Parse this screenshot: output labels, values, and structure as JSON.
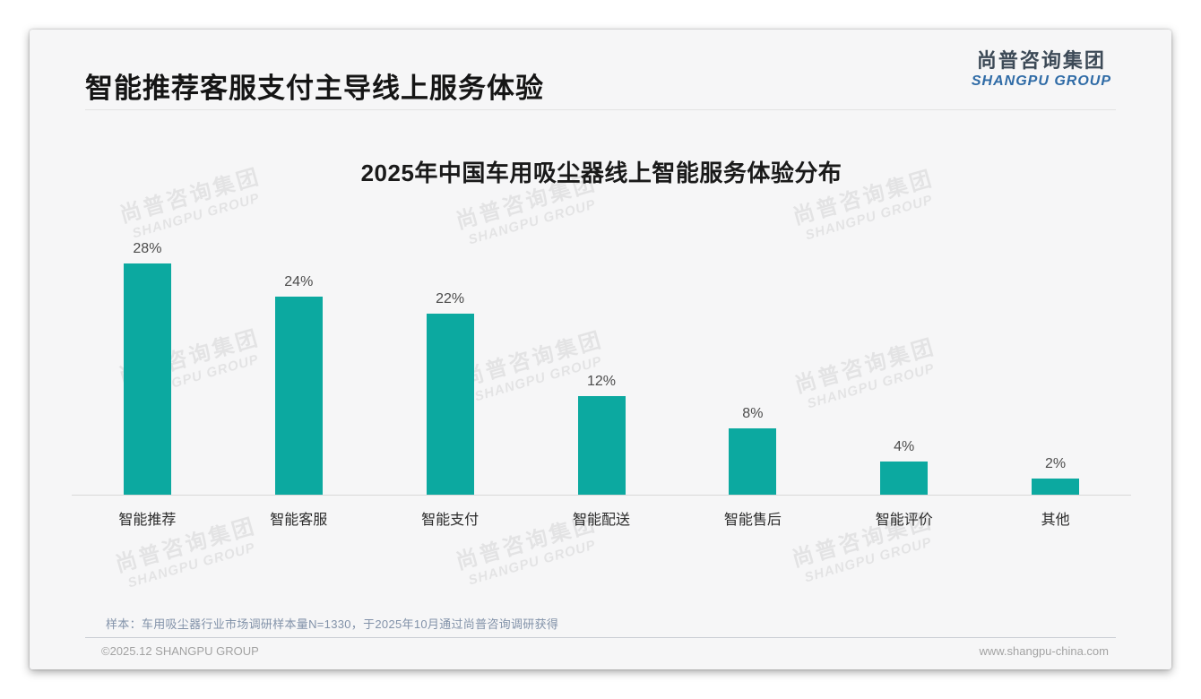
{
  "header": {
    "title": "智能推荐客服支付主导线上服务体验",
    "logo_cn": "尚普咨询集团",
    "logo_en": "SHANGPU GROUP"
  },
  "watermark": {
    "line1": "尚普咨询集团",
    "line2": "SHANGPU GROUP"
  },
  "chart_data": {
    "type": "bar",
    "title": "2025年中国车用吸尘器线上智能服务体验分布",
    "categories": [
      "智能推荐",
      "智能客服",
      "智能支付",
      "智能配送",
      "智能售后",
      "智能评价",
      "其他"
    ],
    "values": [
      28,
      24,
      22,
      12,
      8,
      4,
      2
    ],
    "labels": [
      "28%",
      "24%",
      "22%",
      "12%",
      "8%",
      "4%",
      "2%"
    ],
    "unit": "%",
    "ylim": [
      0,
      30
    ],
    "bar_color": "#0ca9a0",
    "grid": false,
    "legend": false,
    "data_labels_position": "above-bar"
  },
  "footnote": {
    "text": "样本：车用吸尘器行业市场调研样本量N=1330，于2025年10月通过尚普咨询调研获得"
  },
  "footer": {
    "left": "©2025.12 SHANGPU GROUP",
    "right": "www.shangpu-china.com"
  }
}
